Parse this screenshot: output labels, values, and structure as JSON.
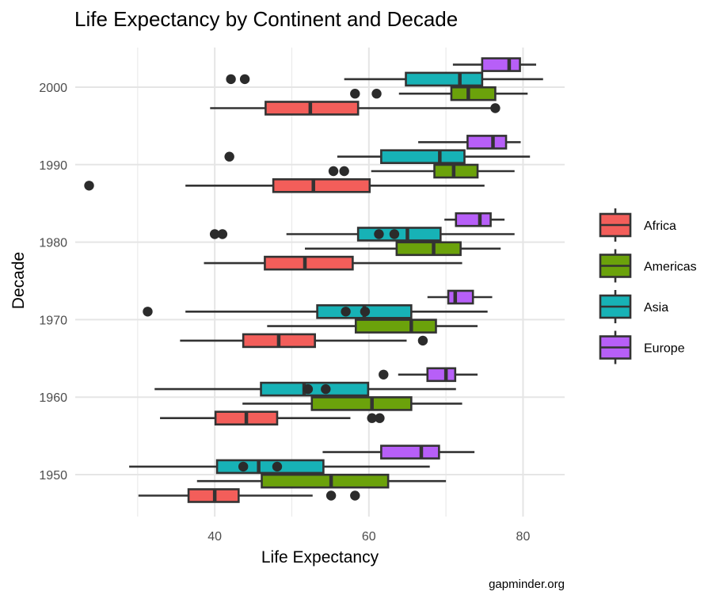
{
  "chart_data": {
    "type": "boxplot",
    "orientation": "horizontal",
    "title": "Life Expectancy by Continent and Decade",
    "xlabel": "Life Expectancy",
    "ylabel": "Decade",
    "caption": "gapminder.org",
    "xlim": [
      21.9,
      85.4
    ],
    "x_ticks": [
      40,
      60,
      80
    ],
    "x_minor_gridlines": [
      30,
      50,
      70
    ],
    "categories": [
      "1950",
      "1960",
      "1970",
      "1980",
      "1990",
      "2000"
    ],
    "grid": true,
    "legend": {
      "position": "right",
      "entries": [
        {
          "name": "Africa",
          "color": "#F35E5A"
        },
        {
          "name": "Americas",
          "color": "#6BA20B"
        },
        {
          "name": "Asia",
          "color": "#17B2B6"
        },
        {
          "name": "Europe",
          "color": "#B75FF8"
        }
      ]
    },
    "series": [
      {
        "name": "Africa",
        "color": "#F35E5A",
        "boxes": [
          {
            "decade": "1950",
            "whisker_low": 30.1,
            "q1": 36.6,
            "median": 40.0,
            "q3": 43.1,
            "whisker_high": 52.7,
            "outliers": [
              55.1,
              58.2
            ]
          },
          {
            "decade": "1960",
            "whisker_low": 32.9,
            "q1": 40.1,
            "median": 44.1,
            "q3": 48.1,
            "whisker_high": 57.6,
            "outliers": [
              60.4,
              61.4
            ]
          },
          {
            "decade": "1970",
            "whisker_low": 35.5,
            "q1": 43.7,
            "median": 48.3,
            "q3": 53.0,
            "whisker_high": 64.9,
            "outliers": [
              67.0
            ]
          },
          {
            "decade": "1980",
            "whisker_low": 38.6,
            "q1": 46.5,
            "median": 51.7,
            "q3": 57.9,
            "whisker_high": 72.1,
            "outliers": []
          },
          {
            "decade": "1990",
            "whisker_low": 36.2,
            "q1": 47.6,
            "median": 52.8,
            "q3": 60.1,
            "whisker_high": 75.0,
            "outliers": [
              23.7
            ]
          },
          {
            "decade": "2000",
            "whisker_low": 39.4,
            "q1": 46.6,
            "median": 52.4,
            "q3": 58.6,
            "whisker_high": 76.4,
            "outliers": [
              76.4
            ]
          }
        ]
      },
      {
        "name": "Americas",
        "color": "#6BA20B",
        "boxes": [
          {
            "decade": "1950",
            "whisker_low": 37.7,
            "q1": 46.1,
            "median": 55.1,
            "q3": 62.5,
            "whisker_high": 70.0,
            "outliers": []
          },
          {
            "decade": "1960",
            "whisker_low": 43.6,
            "q1": 52.6,
            "median": 60.4,
            "q3": 65.5,
            "whisker_high": 72.1,
            "outliers": []
          },
          {
            "decade": "1970",
            "whisker_low": 46.8,
            "q1": 58.3,
            "median": 65.5,
            "q3": 68.7,
            "whisker_high": 74.1,
            "outliers": []
          },
          {
            "decade": "1980",
            "whisker_low": 51.7,
            "q1": 63.6,
            "median": 68.4,
            "q3": 71.9,
            "whisker_high": 77.1,
            "outliers": []
          },
          {
            "decade": "1990",
            "whisker_low": 60.3,
            "q1": 68.5,
            "median": 71.0,
            "q3": 74.1,
            "whisker_high": 78.9,
            "outliers": [
              55.4,
              56.8
            ]
          },
          {
            "decade": "2000",
            "whisker_low": 63.9,
            "q1": 70.7,
            "median": 72.9,
            "q3": 76.4,
            "whisker_high": 80.6,
            "outliers": [
              58.2,
              61.0
            ]
          }
        ]
      },
      {
        "name": "Asia",
        "color": "#17B2B6",
        "boxes": [
          {
            "decade": "1950",
            "whisker_low": 28.9,
            "q1": 40.3,
            "median": 45.7,
            "q3": 54.1,
            "whisker_high": 67.9,
            "outliers": [
              43.7,
              48.1
            ]
          },
          {
            "decade": "1960",
            "whisker_low": 32.2,
            "q1": 46.0,
            "median": 51.6,
            "q3": 59.9,
            "whisker_high": 71.3,
            "outliers": [
              52.1,
              54.4
            ]
          },
          {
            "decade": "1970",
            "whisker_low": 36.2,
            "q1": 53.3,
            "median": 59.4,
            "q3": 65.5,
            "whisker_high": 75.4,
            "outliers": [
              31.3,
              57.0,
              59.5
            ]
          },
          {
            "decade": "1980",
            "whisker_low": 49.3,
            "q1": 58.6,
            "median": 65.0,
            "q3": 69.3,
            "whisker_high": 78.9,
            "outliers": [
              40.0,
              41.0,
              61.3,
              63.3
            ]
          },
          {
            "decade": "1990",
            "whisker_low": 55.9,
            "q1": 61.6,
            "median": 69.2,
            "q3": 72.4,
            "whisker_high": 80.9,
            "outliers": [
              41.9
            ]
          },
          {
            "decade": "2000",
            "whisker_low": 56.8,
            "q1": 64.8,
            "median": 71.8,
            "q3": 74.7,
            "whisker_high": 82.6,
            "outliers": [
              42.1,
              43.9
            ]
          }
        ]
      },
      {
        "name": "Europe",
        "color": "#B75FF8",
        "boxes": [
          {
            "decade": "1950",
            "whisker_low": 54.0,
            "q1": 61.6,
            "median": 66.8,
            "q3": 69.1,
            "whisker_high": 73.7,
            "outliers": []
          },
          {
            "decade": "1960",
            "whisker_low": 63.8,
            "q1": 67.6,
            "median": 70.0,
            "q3": 71.2,
            "whisker_high": 74.1,
            "outliers": [
              61.9
            ]
          },
          {
            "decade": "1970",
            "whisker_low": 67.6,
            "q1": 70.3,
            "median": 71.2,
            "q3": 73.5,
            "whisker_high": 76.0,
            "outliers": []
          },
          {
            "decade": "1980",
            "whisker_low": 69.8,
            "q1": 71.3,
            "median": 74.4,
            "q3": 75.8,
            "whisker_high": 77.6,
            "outliers": []
          },
          {
            "decade": "1990",
            "whisker_low": 66.4,
            "q1": 72.8,
            "median": 76.1,
            "q3": 77.8,
            "whisker_high": 79.7,
            "outliers": []
          },
          {
            "decade": "2000",
            "whisker_low": 70.9,
            "q1": 74.7,
            "median": 78.2,
            "q3": 79.6,
            "whisker_high": 81.7,
            "outliers": []
          }
        ]
      }
    ]
  }
}
